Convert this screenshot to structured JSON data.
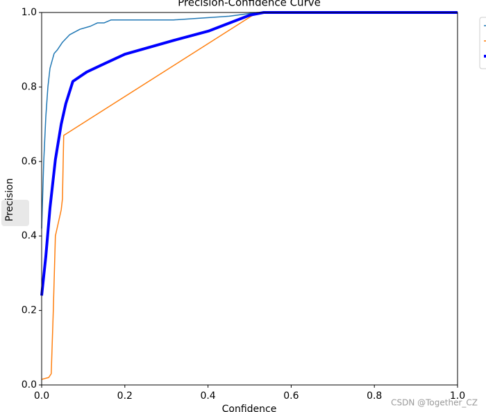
{
  "chart_data": {
    "type": "line",
    "title": "Precision-Confidence Curve",
    "xlabel": "Confidence",
    "ylabel": "Precision",
    "series": [
      {
        "color": "#1f77b4",
        "width": 1.5,
        "x": [
          0,
          0.005,
          0.01,
          0.015,
          0.02,
          0.03,
          0.038,
          0.05,
          0.067,
          0.092,
          0.117,
          0.134,
          0.15,
          0.167,
          0.317,
          0.451,
          0.518,
          1.0
        ],
        "values": [
          0.42,
          0.6,
          0.72,
          0.8,
          0.85,
          0.89,
          0.9,
          0.92,
          0.94,
          0.955,
          0.963,
          0.972,
          0.972,
          0.98,
          0.98,
          0.99,
          1.0,
          1.0
        ]
      },
      {
        "color": "#ff7f0e",
        "width": 1.5,
        "x": [
          0,
          0.017,
          0.023,
          0.028,
          0.033,
          0.047,
          0.05,
          0.053,
          0.518,
          1.0
        ],
        "values": [
          0.015,
          0.02,
          0.03,
          0.2,
          0.4,
          0.47,
          0.5,
          0.67,
          1.0,
          1.0
        ]
      },
      {
        "color": "#0000ff",
        "width": 4,
        "x": [
          0,
          0.01,
          0.02,
          0.033,
          0.047,
          0.058,
          0.075,
          0.108,
          0.15,
          0.2,
          0.317,
          0.401,
          0.501,
          0.534,
          1.0
        ],
        "values": [
          0.24,
          0.345,
          0.475,
          0.605,
          0.7,
          0.755,
          0.815,
          0.84,
          0.862,
          0.888,
          0.925,
          0.95,
          0.993,
          1.0,
          1.0
        ]
      }
    ],
    "xlim": [
      0,
      1
    ],
    "ylim": [
      0,
      1
    ],
    "xticks": [
      {
        "value": 0,
        "label": "0.0"
      },
      0.2,
      0.4,
      0.6,
      0.8,
      {
        "value": 1,
        "label": "1.0"
      }
    ],
    "yticks": [
      {
        "value": 0,
        "label": "0.0"
      },
      0.2,
      0.4,
      0.6,
      0.8,
      {
        "value": 1,
        "label": "1.0"
      }
    ],
    "grid": false
  },
  "watermark": "CSDN @Together_CZ"
}
